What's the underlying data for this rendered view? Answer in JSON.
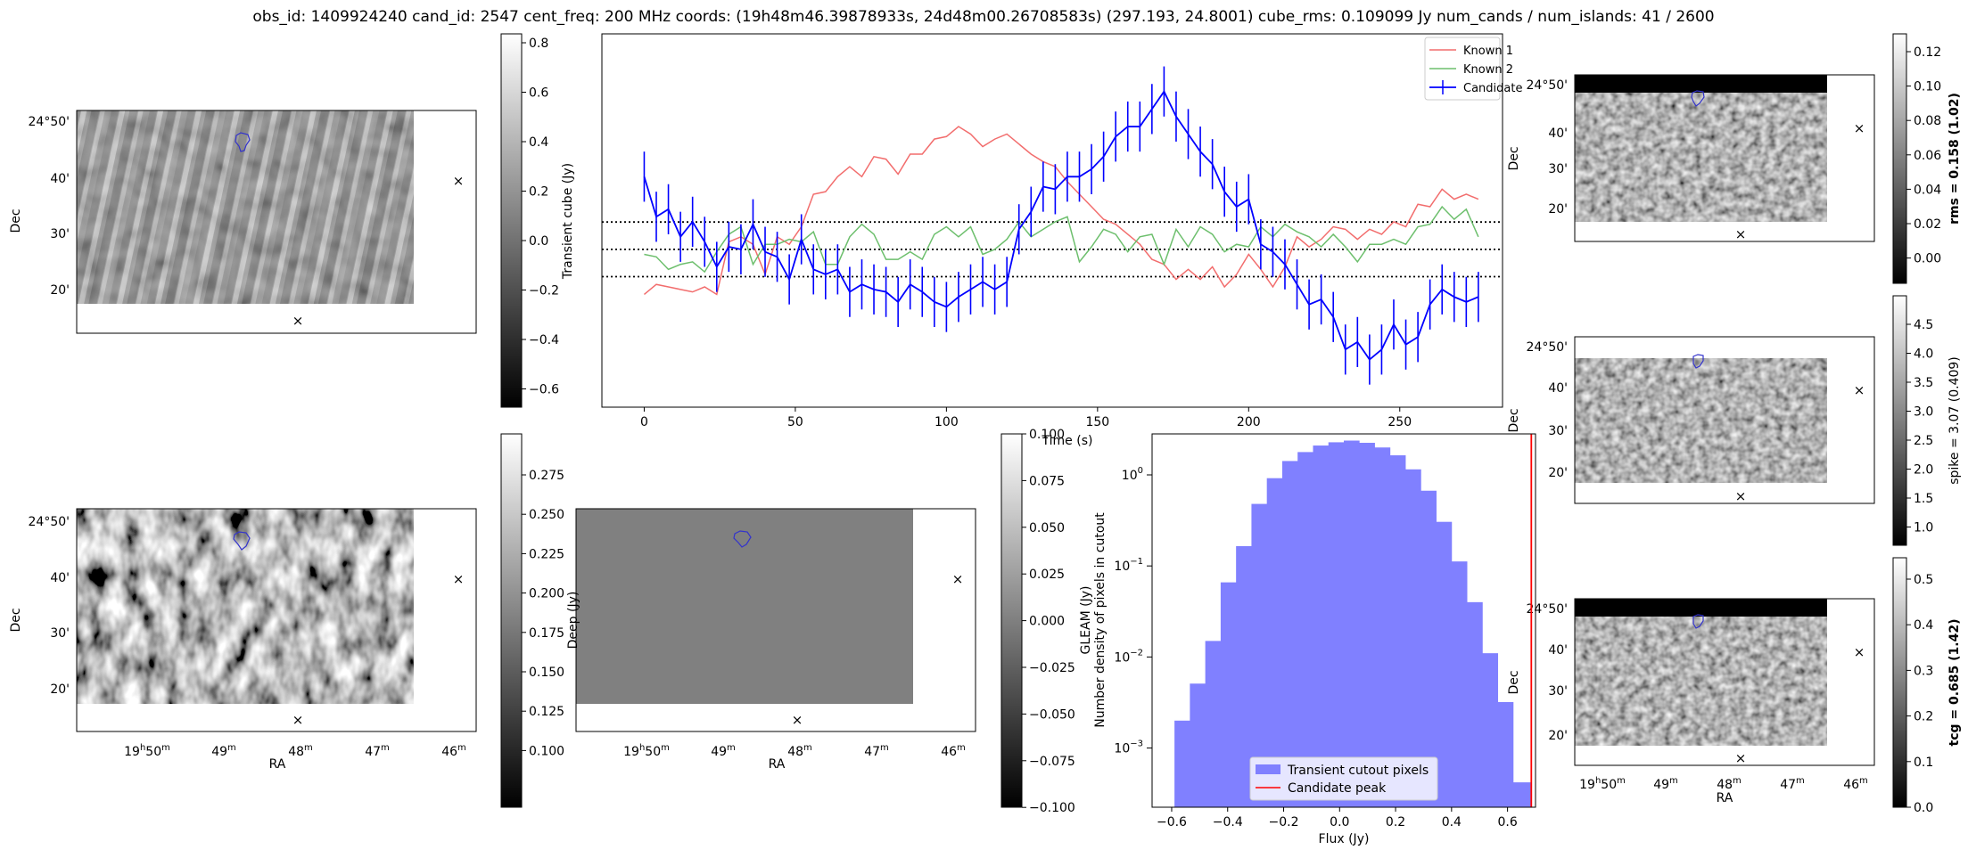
{
  "figure": {
    "title": "obs_id: 1409924240 cand_id: 2547 cent_freq: 200 MHz coords: (19h48m46.39878933s, 24d48m00.26708583s) (297.193, 24.8001) cube_rms: 0.109099 Jy num_cands / num_islands: 41 / 2600"
  },
  "images": {
    "dec_label": "Dec",
    "ra_label": "RA",
    "dec_ticks": [
      "24°50'",
      "40'",
      "30'",
      "20'"
    ],
    "ra_ticks": [
      "19h50m",
      "49m",
      "48m",
      "47m",
      "46m"
    ],
    "ra_tick_parts": [
      {
        "main": "19",
        "sup1": "h",
        "mid": "50",
        "sup2": "m"
      },
      {
        "main": "49",
        "sup": "m"
      },
      {
        "main": "48",
        "sup": "m"
      },
      {
        "main": "47",
        "sup": "m"
      },
      {
        "main": "46",
        "sup": "m"
      }
    ],
    "marker_red": "#ff0000",
    "marker_green": "#008000",
    "contour_color": "#3333cc"
  },
  "colorbars": {
    "transient": {
      "label": "Transient cube (Jy)",
      "ticks": [
        "0.8",
        "0.6",
        "0.4",
        "0.2",
        "0.0",
        "−0.2",
        "−0.4",
        "−0.6"
      ]
    },
    "deep": {
      "label": "Deep (Jy)",
      "ticks": [
        "0.275",
        "0.250",
        "0.225",
        "0.200",
        "0.175",
        "0.150",
        "0.125",
        "0.100"
      ]
    },
    "gleam": {
      "label": "GLEAM (Jy)",
      "ticks": [
        "0.100",
        "0.075",
        "0.050",
        "0.025",
        "0.000",
        "−0.025",
        "−0.050",
        "−0.075",
        "−0.100"
      ]
    },
    "rms": {
      "label": "rms = 0.158 (1.02)",
      "ticks": [
        "0.12",
        "0.10",
        "0.08",
        "0.06",
        "0.04",
        "0.02",
        "0.00"
      ]
    },
    "spike": {
      "label": "spike = 3.07 (0.409)",
      "ticks": [
        "4.5",
        "4.0",
        "3.5",
        "3.0",
        "2.5",
        "2.0",
        "1.5",
        "1.0"
      ]
    },
    "tcg": {
      "label": "tcg = 0.685 (1.42)",
      "ticks": [
        "0.5",
        "0.4",
        "0.3",
        "0.2",
        "0.1",
        "0.0"
      ]
    }
  },
  "chart_data": [
    {
      "type": "line",
      "id": "lightcurve",
      "xlabel": "Time (s)",
      "ylabel": "",
      "xlim": [
        -14,
        284
      ],
      "ylim": [
        -0.63,
        0.86
      ],
      "x_ticks": [
        "0",
        "50",
        "100",
        "150",
        "200",
        "250"
      ],
      "hlines": [
        0.109,
        0.0,
        -0.109
      ],
      "legend_loc": "upper right",
      "x": [
        0,
        4,
        8,
        12,
        16,
        20,
        24,
        28,
        32,
        36,
        40,
        44,
        48,
        52,
        56,
        60,
        64,
        68,
        72,
        76,
        80,
        84,
        88,
        92,
        96,
        100,
        104,
        108,
        112,
        116,
        120,
        124,
        128,
        132,
        136,
        140,
        144,
        148,
        152,
        156,
        160,
        164,
        168,
        172,
        176,
        180,
        184,
        188,
        192,
        196,
        200,
        204,
        208,
        212,
        216,
        220,
        224,
        228,
        232,
        236,
        240,
        244,
        248,
        252,
        256,
        260,
        264,
        268,
        272,
        276
      ],
      "series": [
        {
          "name": "Known 1",
          "color": "#f26d6d",
          "values": [
            -0.18,
            -0.14,
            -0.15,
            -0.16,
            -0.17,
            -0.15,
            -0.18,
            0.03,
            0.05,
            0.02,
            -0.1,
            0.05,
            0.02,
            0.09,
            0.22,
            0.23,
            0.29,
            0.33,
            0.29,
            0.37,
            0.36,
            0.3,
            0.38,
            0.38,
            0.44,
            0.45,
            0.49,
            0.46,
            0.41,
            0.44,
            0.46,
            0.42,
            0.38,
            0.35,
            0.33,
            0.27,
            0.22,
            0.17,
            0.12,
            0.1,
            0.06,
            0.02,
            -0.04,
            -0.06,
            -0.12,
            -0.08,
            -0.12,
            -0.07,
            -0.15,
            -0.1,
            -0.02,
            -0.08,
            -0.15,
            -0.07,
            0.05,
            0.01,
            0.04,
            0.09,
            0.08,
            0.04,
            0.08,
            0.06,
            0.11,
            0.09,
            0.18,
            0.17,
            0.24,
            0.2,
            0.22,
            0.2
          ]
        },
        {
          "name": "Known 2",
          "color": "#6dbf6d",
          "values": [
            -0.02,
            -0.03,
            -0.08,
            -0.06,
            -0.05,
            -0.09,
            -0.01,
            0.06,
            0.09,
            -0.06,
            0.02,
            0.02,
            0.04,
            0.03,
            0.07,
            -0.06,
            -0.06,
            0.05,
            0.1,
            0.06,
            -0.04,
            -0.04,
            -0.01,
            -0.04,
            0.06,
            0.09,
            0.05,
            0.09,
            -0.02,
            0.0,
            0.04,
            0.11,
            0.05,
            0.08,
            0.11,
            0.13,
            -0.05,
            0.01,
            0.08,
            0.06,
            -0.01,
            0.05,
            0.06,
            -0.06,
            0.08,
            0.01,
            0.09,
            0.06,
            -0.01,
            0.02,
            0.01,
            0.09,
            0.05,
            0.1,
            0.07,
            0.05,
            0.01,
            0.06,
            0.01,
            -0.05,
            0.02,
            0.02,
            0.04,
            0.02,
            0.09,
            0.1,
            0.17,
            0.12,
            0.16,
            0.05
          ]
        },
        {
          "name": "Candidate",
          "color": "#0000ff",
          "values": [
            0.29,
            0.13,
            0.16,
            0.05,
            0.11,
            0.03,
            -0.07,
            0.01,
            0.0,
            0.1,
            -0.01,
            -0.03,
            -0.12,
            0.04,
            -0.08,
            -0.1,
            -0.08,
            -0.17,
            -0.14,
            -0.16,
            -0.17,
            -0.21,
            -0.14,
            -0.17,
            -0.21,
            -0.23,
            -0.19,
            -0.16,
            -0.13,
            -0.16,
            -0.13,
            0.08,
            0.15,
            0.25,
            0.24,
            0.29,
            0.29,
            0.32,
            0.37,
            0.45,
            0.49,
            0.49,
            0.56,
            0.63,
            0.53,
            0.46,
            0.39,
            0.34,
            0.23,
            0.17,
            0.2,
            0.02,
            -0.01,
            -0.06,
            -0.14,
            -0.22,
            -0.2,
            -0.27,
            -0.4,
            -0.37,
            -0.44,
            -0.4,
            -0.3,
            -0.38,
            -0.35,
            -0.22,
            -0.16,
            -0.19,
            -0.21,
            -0.19
          ],
          "errors": 0.1
        }
      ]
    },
    {
      "type": "bar",
      "id": "histogram",
      "xlabel": "Flux (Jy)",
      "ylabel": "Number density of pixels in cutout",
      "yscale": "log",
      "xlim": [
        -0.67,
        0.7
      ],
      "ylim_log10": [
        -3.65,
        0.45
      ],
      "x_ticks": [
        "−0.6",
        "−0.4",
        "−0.2",
        "0.0",
        "0.2",
        "0.4",
        "0.6"
      ],
      "x_tick_values": [
        -0.6,
        -0.4,
        -0.2,
        0.0,
        0.2,
        0.4,
        0.6
      ],
      "y_ticks": [
        {
          "value": 1,
          "base": "10",
          "exp": "0"
        },
        {
          "value": 0.1,
          "base": "10",
          "exp": "−1"
        },
        {
          "value": 0.01,
          "base": "10",
          "exp": "−2"
        },
        {
          "value": 0.001,
          "base": "10",
          "exp": "−3"
        }
      ],
      "bin_edges": [
        -0.59,
        -0.535,
        -0.48,
        -0.425,
        -0.37,
        -0.315,
        -0.26,
        -0.205,
        -0.15,
        -0.095,
        -0.04,
        0.015,
        0.07,
        0.125,
        0.18,
        0.235,
        0.29,
        0.345,
        0.4,
        0.455,
        0.51,
        0.565,
        0.62,
        0.685
      ],
      "densities": [
        0.002,
        0.0051,
        0.015,
        0.066,
        0.165,
        0.48,
        0.92,
        1.42,
        1.78,
        2.1,
        2.28,
        2.38,
        2.25,
        2.0,
        1.64,
        1.15,
        0.67,
        0.305,
        0.112,
        0.04,
        0.011,
        0.0032,
        0.00042
      ],
      "candidate_peak": 0.685,
      "legend": [
        "Transient cutout pixels",
        "Candidate peak"
      ],
      "bar_color": "#8080ff",
      "peak_color": "#ff0000"
    }
  ]
}
